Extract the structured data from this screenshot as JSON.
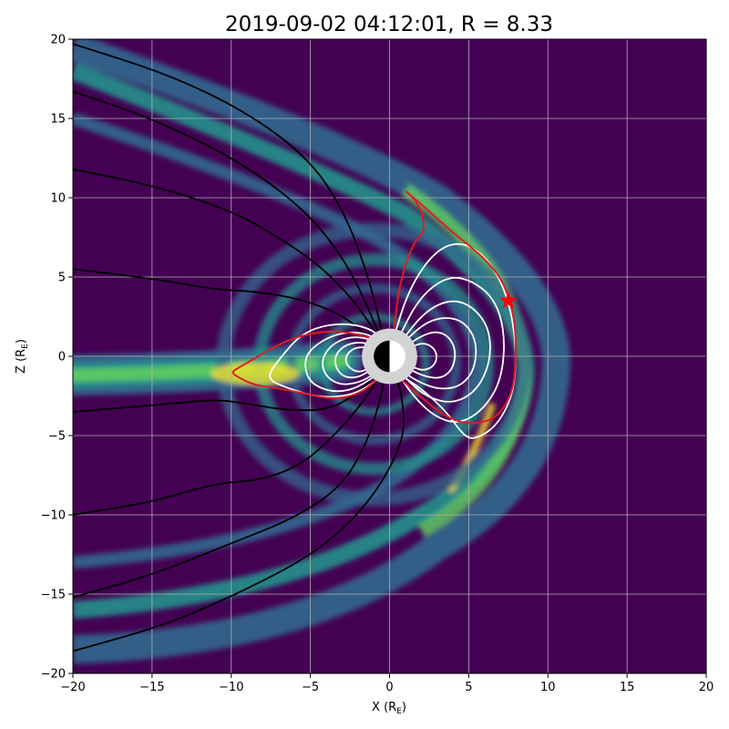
{
  "chart_data": {
    "type": "contour",
    "title": "2019-09-02 04:12:01, R = 8.33",
    "xlabel_main": "X (R",
    "xlabel_sub": "E",
    "xlabel_close": ")",
    "ylabel_main": "Z (R",
    "ylabel_sub": "E",
    "ylabel_close": ")",
    "xlim": [
      -20,
      20
    ],
    "ylim": [
      -20,
      20
    ],
    "xticks": [
      -20,
      -15,
      -10,
      -5,
      0,
      5,
      10,
      15,
      20
    ],
    "yticks": [
      -20,
      -15,
      -10,
      -5,
      0,
      5,
      10,
      15,
      20
    ],
    "xtick_labels": [
      "−20",
      "−15",
      "−10",
      "−5",
      "0",
      "5",
      "10",
      "15",
      "20"
    ],
    "ytick_labels": [
      "−20",
      "−15",
      "−10",
      "−5",
      "0",
      "5",
      "10",
      "15",
      "20"
    ],
    "grid": true,
    "colors": {
      "background": "#440154",
      "band_low": "#31688e",
      "band_mid": "#21918c",
      "band_high": "#5ec962",
      "band_peak": "#fde725",
      "open_field": "#000000",
      "closed_field": "#ffffff",
      "last_closed": "#e41a1c",
      "marker": "#ff0000",
      "earth_ring": "#d3d3d3"
    },
    "marker": {
      "x": 7.5,
      "z": 3.5,
      "symbol": "star"
    },
    "open_field_lines": [
      [
        [
          -20,
          19.7
        ],
        [
          -14,
          17.8
        ],
        [
          -9,
          15.4
        ],
        [
          -5,
          12.4
        ],
        [
          -2.8,
          9
        ],
        [
          -1.4,
          5.2
        ],
        [
          -0.7,
          2.5
        ],
        [
          -0.35,
          1.0
        ]
      ],
      [
        [
          -20,
          16.7
        ],
        [
          -15,
          15
        ],
        [
          -10,
          12.6
        ],
        [
          -6,
          9.8
        ],
        [
          -3.6,
          7.2
        ],
        [
          -2,
          4.5
        ],
        [
          -1,
          2.2
        ],
        [
          -0.4,
          0.9
        ]
      ],
      [
        [
          -20,
          11.8
        ],
        [
          -15,
          10.8
        ],
        [
          -10,
          9.2
        ],
        [
          -7,
          7.5
        ],
        [
          -4.5,
          5.8
        ],
        [
          -2.5,
          3.8
        ],
        [
          -1.2,
          2
        ],
        [
          -0.45,
          0.8
        ]
      ],
      [
        [
          -20,
          5.5
        ],
        [
          -15,
          4.9
        ],
        [
          -11,
          4.2
        ],
        [
          -8.5,
          4.1
        ],
        [
          -5.5,
          3.6
        ],
        [
          -3,
          2.6
        ],
        [
          -1.5,
          1.4
        ],
        [
          -0.5,
          0.6
        ]
      ],
      [
        [
          -20,
          -3.5
        ],
        [
          -15,
          -3.1
        ],
        [
          -11,
          -2.7
        ],
        [
          -9,
          -3
        ],
        [
          -6.5,
          -3.4
        ],
        [
          -4,
          -3.4
        ],
        [
          -2.2,
          -2.5
        ],
        [
          -1,
          -1.3
        ],
        [
          -0.45,
          -0.6
        ]
      ],
      [
        [
          -20,
          -10
        ],
        [
          -15,
          -9.2
        ],
        [
          -11,
          -8
        ],
        [
          -8,
          -7.8
        ],
        [
          -5.5,
          -6.8
        ],
        [
          -3.5,
          -5
        ],
        [
          -2,
          -3.3
        ],
        [
          -1,
          -1.9
        ],
        [
          -0.4,
          -0.8
        ]
      ],
      [
        [
          -20,
          -15.2
        ],
        [
          -15,
          -13.8
        ],
        [
          -10,
          -11.8
        ],
        [
          -6,
          -10.2
        ],
        [
          -3,
          -8.2
        ],
        [
          -1.4,
          -5.4
        ],
        [
          -0.6,
          -2.8
        ],
        [
          -0.25,
          -1.0
        ]
      ],
      [
        [
          -20,
          -18.6
        ],
        [
          -14,
          -16.9
        ],
        [
          -9,
          -14.7
        ],
        [
          -4.5,
          -12.3
        ],
        [
          -1.2,
          -9.2
        ],
        [
          1,
          -5.2
        ],
        [
          0.8,
          -2.5
        ],
        [
          0.3,
          -1.0
        ]
      ]
    ],
    "closed_field_lines": [
      [
        [
          0.2,
          1.0
        ],
        [
          1.2,
          4.2
        ],
        [
          2.8,
          6.6
        ],
        [
          4.5,
          7.3
        ],
        [
          6.2,
          6.2
        ],
        [
          7.4,
          4
        ],
        [
          8,
          1
        ],
        [
          7.9,
          -2.2
        ],
        [
          6.8,
          -4.4
        ],
        [
          5.3,
          -5.3
        ],
        [
          4.6,
          -4.9
        ],
        [
          3.6,
          -3.5
        ],
        [
          2.2,
          -2.2
        ],
        [
          0.9,
          -1.3
        ],
        [
          0.3,
          -1.0
        ]
      ],
      [
        [
          0.5,
          1.0
        ],
        [
          1.8,
          3.6
        ],
        [
          3.5,
          5
        ],
        [
          5,
          4.9
        ],
        [
          6.6,
          3.7
        ],
        [
          7.3,
          1.5
        ],
        [
          7.1,
          -1.4
        ],
        [
          6,
          -3.3
        ],
        [
          4.4,
          -4.3
        ],
        [
          2.8,
          -3.8
        ],
        [
          1.4,
          -2.4
        ],
        [
          0.5,
          -1.0
        ]
      ],
      [
        [
          0.7,
          0.9
        ],
        [
          2.2,
          2.8
        ],
        [
          3.8,
          3.6
        ],
        [
          5.2,
          3.2
        ],
        [
          6.3,
          1.8
        ],
        [
          6.4,
          -0.3
        ],
        [
          5.5,
          -2.2
        ],
        [
          4,
          -3
        ],
        [
          2.4,
          -2.6
        ],
        [
          1.2,
          -1.6
        ],
        [
          0.7,
          -0.9
        ]
      ],
      [
        [
          0.8,
          0.8
        ],
        [
          2.2,
          2.1
        ],
        [
          3.5,
          2.5
        ],
        [
          4.7,
          2.2
        ],
        [
          5.5,
          1
        ],
        [
          5.4,
          -0.8
        ],
        [
          4.5,
          -1.9
        ],
        [
          3.2,
          -2.1
        ],
        [
          2,
          -1.7
        ],
        [
          1,
          -1.1
        ],
        [
          0.8,
          -0.8
        ]
      ],
      [
        [
          1,
          0.6
        ],
        [
          2,
          1.3
        ],
        [
          3,
          1.6
        ],
        [
          3.8,
          1.2
        ],
        [
          4.2,
          0.3
        ],
        [
          4,
          -0.8
        ],
        [
          3.3,
          -1.4
        ],
        [
          2.3,
          -1.3
        ],
        [
          1.4,
          -0.9
        ],
        [
          1,
          -0.6
        ]
      ],
      [
        [
          1.1,
          0.4
        ],
        [
          1.8,
          0.8
        ],
        [
          2.4,
          0.8
        ],
        [
          2.9,
          0.4
        ],
        [
          3,
          -0.2
        ],
        [
          2.7,
          -0.7
        ],
        [
          2.1,
          -0.9
        ],
        [
          1.5,
          -0.7
        ],
        [
          1.1,
          -0.4
        ]
      ],
      [
        [
          -0.2,
          1.0
        ],
        [
          -1.5,
          1.9
        ],
        [
          -3.5,
          2.1
        ],
        [
          -5.5,
          1.5
        ],
        [
          -7,
          -0.2
        ],
        [
          -7.8,
          -1.4
        ],
        [
          -6.5,
          -2
        ],
        [
          -4.5,
          -2.6
        ],
        [
          -2.5,
          -2.5
        ],
        [
          -1,
          -1.7
        ],
        [
          -0.3,
          -1.0
        ]
      ],
      [
        [
          -0.5,
          0.9
        ],
        [
          -1.6,
          1.5
        ],
        [
          -3,
          1.5
        ],
        [
          -4.3,
          1
        ],
        [
          -5.4,
          0
        ],
        [
          -5.2,
          -1.5
        ],
        [
          -4,
          -2.2
        ],
        [
          -2.6,
          -2.2
        ],
        [
          -1.4,
          -1.6
        ],
        [
          -0.5,
          -0.9
        ]
      ],
      [
        [
          -0.7,
          0.8
        ],
        [
          -1.6,
          1.2
        ],
        [
          -2.7,
          1.2
        ],
        [
          -3.7,
          0.7
        ],
        [
          -4.3,
          -0.2
        ],
        [
          -4.1,
          -1.2
        ],
        [
          -3.2,
          -1.8
        ],
        [
          -2.1,
          -1.7
        ],
        [
          -1.2,
          -1.3
        ],
        [
          -0.7,
          -0.8
        ]
      ],
      [
        [
          -0.9,
          0.6
        ],
        [
          -1.7,
          0.9
        ],
        [
          -2.6,
          0.8
        ],
        [
          -3.3,
          0.3
        ],
        [
          -3.5,
          -0.4
        ],
        [
          -3.1,
          -1.2
        ],
        [
          -2.3,
          -1.4
        ],
        [
          -1.5,
          -1.1
        ],
        [
          -0.9,
          -0.6
        ]
      ],
      [
        [
          -1,
          0.4
        ],
        [
          -1.6,
          0.6
        ],
        [
          -2.3,
          0.5
        ],
        [
          -2.8,
          0
        ],
        [
          -2.7,
          -0.6
        ],
        [
          -2.1,
          -1
        ],
        [
          -1.5,
          -0.9
        ],
        [
          -1,
          -0.4
        ]
      ]
    ],
    "last_closed_field_lines": [
      [
        [
          0.2,
          1.0
        ],
        [
          0.6,
          4.5
        ],
        [
          1.5,
          7.2
        ],
        [
          2.2,
          7.8
        ],
        [
          2.1,
          9.0
        ],
        [
          1.6,
          9.9
        ],
        [
          0.8,
          10.6
        ],
        [
          2.0,
          9.6
        ],
        [
          3.2,
          8.5
        ],
        [
          4.5,
          7.4
        ],
        [
          6.0,
          6.2
        ],
        [
          7.2,
          4.7
        ],
        [
          7.9,
          2.5
        ],
        [
          8.0,
          0
        ],
        [
          7.8,
          -2.2
        ],
        [
          7.0,
          -3.6
        ],
        [
          6.2,
          -4.1
        ],
        [
          5.0,
          -4.3
        ],
        [
          3.5,
          -3.8
        ],
        [
          2.0,
          -2.6
        ],
        [
          0.8,
          -1.5
        ],
        [
          0.3,
          -1.0
        ]
      ],
      [
        [
          -0.2,
          1.0
        ],
        [
          -1.4,
          1.2
        ],
        [
          -3.0,
          1.6
        ],
        [
          -4.8,
          1.5
        ],
        [
          -6.5,
          1.0
        ],
        [
          -7.8,
          0.3
        ],
        [
          -8.8,
          -0.3
        ],
        [
          -9.5,
          -0.7
        ],
        [
          -10,
          -1.0
        ],
        [
          -9.6,
          -1.3
        ],
        [
          -8.6,
          -1.8
        ],
        [
          -7.2,
          -2.0
        ],
        [
          -5.5,
          -2.3
        ],
        [
          -3.8,
          -2.7
        ],
        [
          -2.2,
          -2.5
        ],
        [
          -1.0,
          -1.7
        ],
        [
          -0.3,
          -1.0
        ]
      ]
    ]
  }
}
